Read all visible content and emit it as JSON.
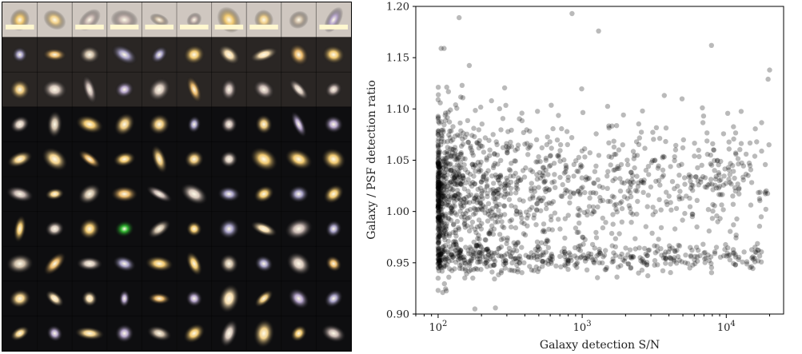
{
  "mosaic": {
    "grid": [
      10,
      10
    ],
    "background": "#0c0c0e",
    "cell_palette": [
      "#f1d08a",
      "#e8c47a",
      "#c9b8b2",
      "#b7a6cc",
      "#f5dcae",
      "#e9b86a",
      "#d7c7bb",
      "#a9a2c8",
      "#f0c870",
      "#cdbca6"
    ],
    "special_cells": {
      "green_source": "#2fb42f",
      "saturated_top_row": "#fff8d0"
    }
  },
  "chart_data": {
    "type": "scatter",
    "title": "",
    "xlabel": "Galaxy detection S/N",
    "ylabel": "Galaxy / PSF detection ratio",
    "x_scale": "log",
    "xlim": [
      70,
      25000
    ],
    "ylim": [
      0.9,
      1.2
    ],
    "x_ticks": [
      "10^2",
      "10^3",
      "10^4"
    ],
    "y_ticks": [
      "0.90",
      "0.95",
      "1.00",
      "1.05",
      "1.10",
      "1.15",
      "1.20"
    ],
    "marker_color": "#000000",
    "marker_alpha": 0.27,
    "grid": false,
    "point_count": 1800,
    "distribution": {
      "upper_cloud": {
        "x_range": [
          100,
          20000
        ],
        "y_center": 1.02,
        "y_spread": 0.05,
        "share": 0.74
      },
      "lower_band": {
        "x_range": [
          100,
          18000
        ],
        "y_center": 0.955,
        "y_spread": 0.01,
        "share": 0.26
      }
    },
    "highlighted_points": [
      {
        "x": 850,
        "y": 1.193
      },
      {
        "x": 140,
        "y": 1.189
      },
      {
        "x": 1300,
        "y": 1.176
      },
      {
        "x": 20000,
        "y": 1.138
      },
      {
        "x": 19500,
        "y": 1.129
      },
      {
        "x": 105,
        "y": 1.159
      },
      {
        "x": 110,
        "y": 1.159
      },
      {
        "x": 180,
        "y": 0.905
      },
      {
        "x": 250,
        "y": 0.906
      },
      {
        "x": 7900,
        "y": 1.162
      },
      {
        "x": 100,
        "y": 0.935
      }
    ]
  }
}
